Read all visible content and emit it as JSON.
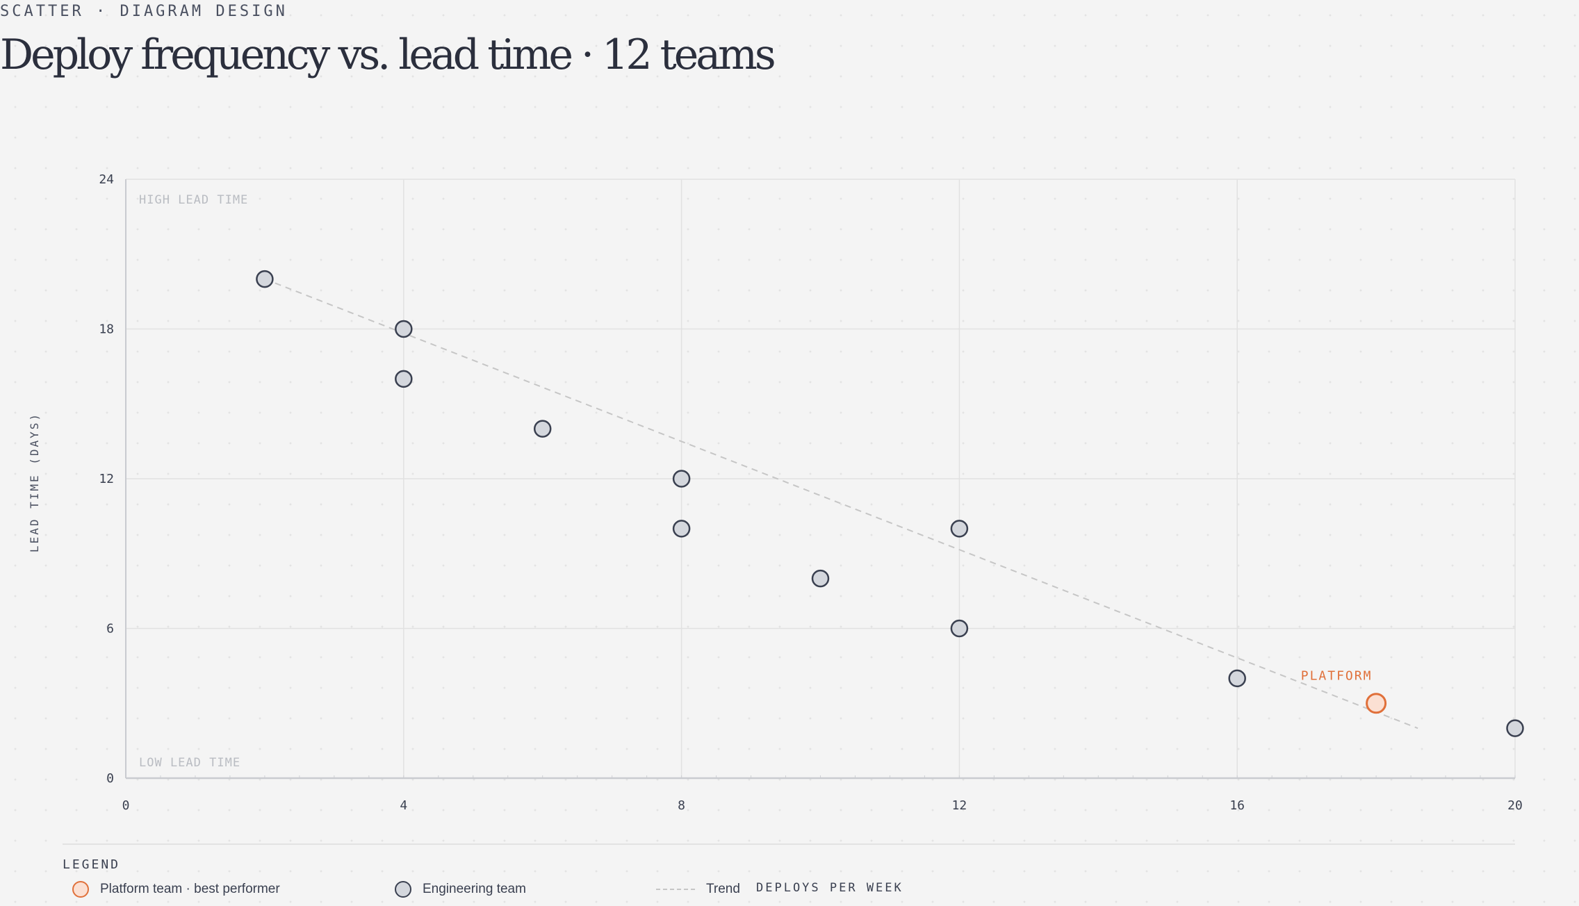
{
  "header": {
    "eyebrow": "SCATTER · DIAGRAM DESIGN",
    "title": "Deploy frequency vs. lead time · 12 teams"
  },
  "chart_data": {
    "type": "scatter",
    "title": "Deploy frequency vs. lead time · 12 teams",
    "xlabel": "DEPLOYS PER WEEK",
    "ylabel": "LEAD TIME (DAYS)",
    "xlim": [
      0,
      20
    ],
    "ylim": [
      0,
      24
    ],
    "xticks": [
      0,
      4,
      8,
      12,
      16,
      20
    ],
    "yticks": [
      0,
      6,
      12,
      18,
      24
    ],
    "grid": true,
    "legend_position": "bottom-left",
    "zones": {
      "top": "HIGH LEAD TIME",
      "bottom": "LOW LEAD TIME"
    },
    "series": [
      {
        "name": "Engineering team",
        "color": "#d4d7dd",
        "points": [
          {
            "x": 2,
            "y": 20
          },
          {
            "x": 4,
            "y": 18
          },
          {
            "x": 4,
            "y": 16
          },
          {
            "x": 6,
            "y": 14
          },
          {
            "x": 8,
            "y": 12
          },
          {
            "x": 8,
            "y": 10
          },
          {
            "x": 10,
            "y": 8
          },
          {
            "x": 12,
            "y": 10
          },
          {
            "x": 12,
            "y": 6
          },
          {
            "x": 16,
            "y": 4
          },
          {
            "x": 20,
            "y": 2
          }
        ]
      },
      {
        "name": "Platform team · best performer",
        "color": "#fbe0d3",
        "stroke": "#e0703a",
        "points": [
          {
            "x": 18,
            "y": 3
          }
        ],
        "annotation": "PLATFORM"
      }
    ],
    "trend": {
      "name": "Trend",
      "color": "#c6c6c6",
      "from": {
        "x": 2,
        "y": 20
      },
      "to": {
        "x": 18.6,
        "y": 2
      }
    }
  },
  "legend": {
    "title": "LEGEND",
    "items": [
      {
        "label": "Platform team · best performer"
      },
      {
        "label": "Engineering team"
      },
      {
        "label": "Trend"
      }
    ]
  }
}
